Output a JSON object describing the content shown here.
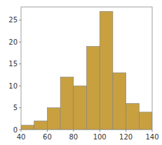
{
  "chart_data": {
    "type": "histogram",
    "bins": [
      40,
      50,
      60,
      70,
      80,
      90,
      100,
      110,
      120,
      130,
      140
    ],
    "values": [
      1,
      2,
      5,
      12,
      10,
      19,
      27,
      13,
      6,
      4
    ],
    "color": "#C8A040",
    "xlim": [
      40,
      140
    ],
    "ylim": [
      0,
      28
    ],
    "xticks": [
      40,
      60,
      80,
      100,
      120,
      140
    ],
    "yticks": [
      0,
      5,
      10,
      15,
      20,
      25
    ],
    "grid": false
  }
}
